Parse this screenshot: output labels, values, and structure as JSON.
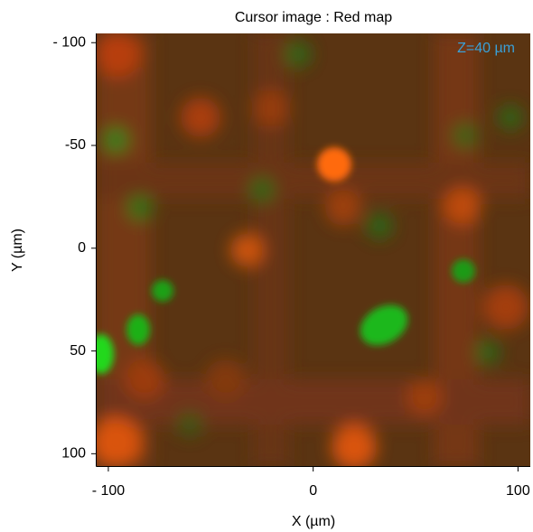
{
  "chart_data": {
    "type": "image",
    "title": "Cursor image : Red map",
    "annotation": "Z=40 µm",
    "x_label": "X (µm)",
    "y_label": "Y (µm)",
    "xlim": [
      -105.7,
      106
    ],
    "ylim": [
      -104.5,
      106
    ],
    "xticks": [
      {
        "value": -100,
        "label": "- 100"
      },
      0,
      100
    ],
    "yticks": [
      {
        "value": -100,
        "label": "- 100"
      },
      -50,
      0,
      50,
      100
    ]
  }
}
